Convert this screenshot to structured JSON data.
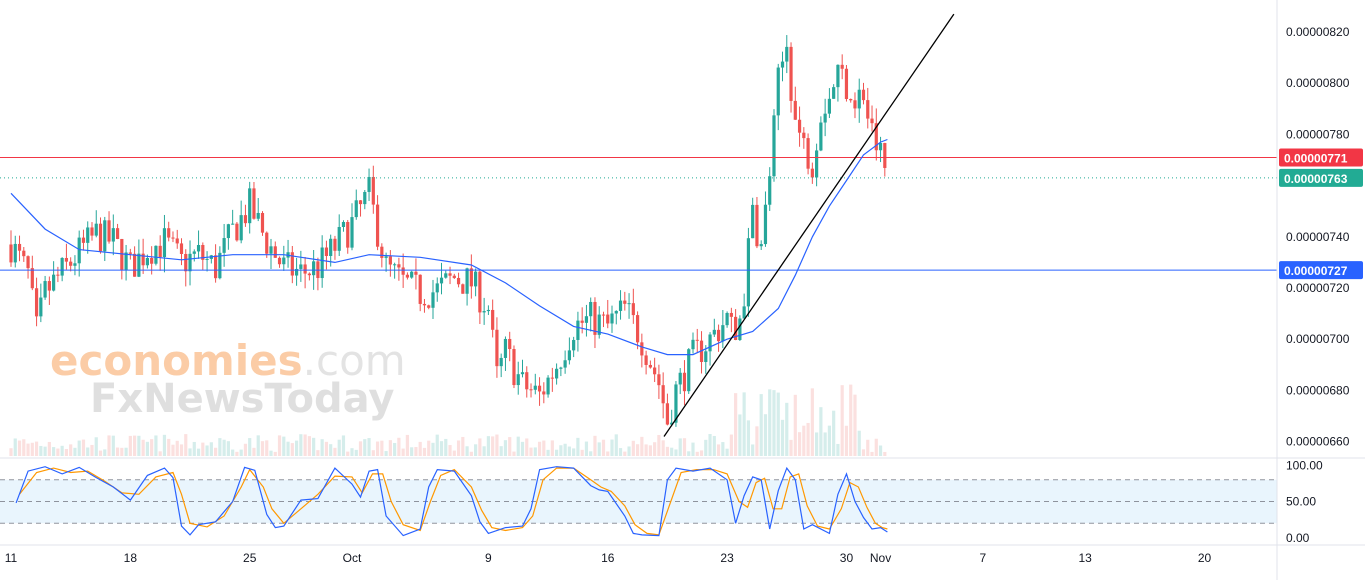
{
  "watermark": {
    "brand_primary": "economies",
    "brand_suffix": ".com",
    "brand_secondary": "FxNewsToday"
  },
  "colors": {
    "up": "#26a69a",
    "down": "#ef5350",
    "ma": "#2962ff",
    "k_line": "#2962ff",
    "d_line": "#ff9800",
    "resistance": "#f23645",
    "support": "#2962ff",
    "price_badge": "#22ab94",
    "trendline": "#000000"
  },
  "chart_data": [
    {
      "type": "candlestick",
      "y_ticks": [
        "0.00000820",
        "0.00000800",
        "0.00000780",
        "0.00000740",
        "0.00000720",
        "0.00000700",
        "0.00000680",
        "0.00000660"
      ],
      "ylim": [
        6.536e-06,
        8.325e-06
      ],
      "x_ticks": [
        {
          "label": "11",
          "day": 0
        },
        {
          "label": "18",
          "day": 7
        },
        {
          "label": "25",
          "day": 14
        },
        {
          "label": "Oct",
          "day": 20
        },
        {
          "label": "9",
          "day": 28
        },
        {
          "label": "16",
          "day": 35
        },
        {
          "label": "23",
          "day": 42
        },
        {
          "label": "30",
          "day": 49
        },
        {
          "label": "Nov",
          "day": 51
        },
        {
          "label": "7",
          "day": 57
        },
        {
          "label": "13",
          "day": 63
        },
        {
          "label": "20",
          "day": 70
        }
      ],
      "xlim": [
        0,
        74
      ],
      "data_end_day": 51.4,
      "horizontal_lines": [
        {
          "name": "resistance",
          "value": 7.71e-06,
          "label": "0.00000771"
        },
        {
          "name": "support",
          "value": 7.27e-06,
          "label": "0.00000727"
        }
      ],
      "current_price": {
        "value": 7.63e-06,
        "label": "0.00000763"
      },
      "trendline": {
        "from": {
          "day": 38.3,
          "value": 6.62e-06
        },
        "to": {
          "day": 55.3,
          "value": 8.27e-06
        }
      },
      "series": [
        {
          "kind": "close_path",
          "points": [
            [
              0,
              7.37e-06
            ],
            [
              1,
              7.25e-06
            ],
            [
              1.5,
              7.03e-06
            ],
            [
              2,
              7.18e-06
            ],
            [
              3,
              7.26e-06
            ],
            [
              4,
              7.34e-06
            ],
            [
              5,
              7.41e-06
            ],
            [
              6,
              7.38e-06
            ],
            [
              7,
              7.28e-06
            ],
            [
              8,
              7.35e-06
            ],
            [
              9,
              7.38e-06
            ],
            [
              10,
              7.3e-06
            ],
            [
              11,
              7.33e-06
            ],
            [
              12,
              7.28e-06
            ],
            [
              13,
              7.42e-06
            ],
            [
              14,
              7.52e-06
            ],
            [
              15,
              7.38e-06
            ],
            [
              16,
              7.28e-06
            ],
            [
              17,
              7.26e-06
            ],
            [
              18,
              7.28e-06
            ],
            [
              19,
              7.36e-06
            ],
            [
              20,
              7.45e-06
            ],
            [
              21,
              7.57e-06
            ],
            [
              22,
              7.28e-06
            ],
            [
              23,
              7.22e-06
            ],
            [
              24,
              7.18e-06
            ],
            [
              25,
              7.19e-06
            ],
            [
              26,
              7.24e-06
            ],
            [
              27,
              7.22e-06
            ],
            [
              28,
              7.12e-06
            ],
            [
              28.5,
              6.85e-06
            ],
            [
              29,
              6.95e-06
            ],
            [
              30,
              6.82e-06
            ],
            [
              31,
              6.78e-06
            ],
            [
              32,
              6.9e-06
            ],
            [
              33,
              7.05e-06
            ],
            [
              34,
              7.08e-06
            ],
            [
              35,
              7.05e-06
            ],
            [
              36,
              7.12e-06
            ],
            [
              37,
              7e-06
            ],
            [
              38,
              6.83e-06
            ],
            [
              38.5,
              6.68e-06
            ],
            [
              39,
              6.8e-06
            ],
            [
              40,
              6.93e-06
            ],
            [
              41,
              7e-06
            ],
            [
              42,
              7.08e-06
            ],
            [
              42.5,
              7e-06
            ],
            [
              43,
              7.18e-06
            ],
            [
              43.5,
              7.5e-06
            ],
            [
              44,
              7.35e-06
            ],
            [
              44.5,
              7.65e-06
            ],
            [
              45,
              8e-06
            ],
            [
              45.5,
              8.15e-06
            ],
            [
              46,
              7.85e-06
            ],
            [
              46.5,
              7.75e-06
            ],
            [
              47,
              7.7e-06
            ],
            [
              47.5,
              7.9e-06
            ],
            [
              48,
              7.95e-06
            ],
            [
              48.5,
              8.05e-06
            ],
            [
              49,
              8e-06
            ],
            [
              49.5,
              7.95e-06
            ],
            [
              50,
              7.95e-06
            ],
            [
              50.5,
              7.8e-06
            ],
            [
              51,
              7.72e-06
            ],
            [
              51.4,
              7.63e-06
            ]
          ]
        },
        {
          "kind": "moving_average",
          "points": [
            [
              0,
              7.57e-06
            ],
            [
              2,
              7.43e-06
            ],
            [
              4,
              7.35e-06
            ],
            [
              7,
              7.33e-06
            ],
            [
              10,
              7.31e-06
            ],
            [
              13,
              7.33e-06
            ],
            [
              16,
              7.33e-06
            ],
            [
              19,
              7.3e-06
            ],
            [
              21,
              7.33e-06
            ],
            [
              24,
              7.32e-06
            ],
            [
              27,
              7.29e-06
            ],
            [
              29,
              7.22e-06
            ],
            [
              31,
              7.13e-06
            ],
            [
              33,
              7.05e-06
            ],
            [
              35,
              7.02e-06
            ],
            [
              37,
              6.97e-06
            ],
            [
              38.5,
              6.94e-06
            ],
            [
              40,
              6.94e-06
            ],
            [
              42,
              7e-06
            ],
            [
              43.5,
              7.03e-06
            ],
            [
              45,
              7.12e-06
            ],
            [
              46,
              7.25e-06
            ],
            [
              47,
              7.4e-06
            ],
            [
              48,
              7.52e-06
            ],
            [
              49,
              7.62e-06
            ],
            [
              50,
              7.72e-06
            ],
            [
              51,
              7.77e-06
            ],
            [
              51.4,
              7.78e-06
            ]
          ]
        }
      ]
    },
    {
      "type": "line",
      "indicator": "stochastic_rsi",
      "y_ticks": [
        "100.00",
        "50.00",
        "0.00"
      ],
      "ylim": [
        -10,
        110
      ],
      "band": {
        "upper": 80,
        "middle": 50,
        "lower": 20
      },
      "series": [
        {
          "name": "K",
          "points": [
            [
              0.3,
              48
            ],
            [
              1,
              92
            ],
            [
              2,
              98
            ],
            [
              3,
              88
            ],
            [
              4,
              97
            ],
            [
              5,
              83
            ],
            [
              6,
              70
            ],
            [
              7,
              52
            ],
            [
              8,
              86
            ],
            [
              9,
              96
            ],
            [
              9.5,
              83
            ],
            [
              10,
              16
            ],
            [
              10.5,
              4
            ],
            [
              11,
              18
            ],
            [
              12,
              22
            ],
            [
              13,
              50
            ],
            [
              13.7,
              97
            ],
            [
              14.3,
              93
            ],
            [
              15,
              32
            ],
            [
              15.5,
              14
            ],
            [
              16,
              16
            ],
            [
              17,
              52
            ],
            [
              18,
              54
            ],
            [
              19,
              96
            ],
            [
              20,
              74
            ],
            [
              20.5,
              56
            ],
            [
              21,
              92
            ],
            [
              21.5,
              94
            ],
            [
              22,
              30
            ],
            [
              23,
              3
            ],
            [
              24,
              12
            ],
            [
              24.5,
              70
            ],
            [
              25,
              94
            ],
            [
              26,
              92
            ],
            [
              27,
              58
            ],
            [
              27.5,
              22
            ],
            [
              28,
              6
            ],
            [
              29,
              14
            ],
            [
              30,
              16
            ],
            [
              30.5,
              40
            ],
            [
              31,
              94
            ],
            [
              32,
              98
            ],
            [
              33,
              96
            ],
            [
              34,
              72
            ],
            [
              34.5,
              66
            ],
            [
              35,
              64
            ],
            [
              36,
              30
            ],
            [
              36.5,
              6
            ],
            [
              37,
              4
            ],
            [
              38,
              3
            ],
            [
              38.5,
              80
            ],
            [
              39,
              96
            ],
            [
              40,
              92
            ],
            [
              41,
              96
            ],
            [
              42,
              80
            ],
            [
              42.5,
              20
            ],
            [
              43,
              58
            ],
            [
              43.5,
              84
            ],
            [
              44,
              80
            ],
            [
              44.5,
              12
            ],
            [
              45,
              65
            ],
            [
              45.5,
              96
            ],
            [
              46,
              80
            ],
            [
              46.5,
              12
            ],
            [
              47,
              18
            ],
            [
              48,
              6
            ],
            [
              48.5,
              60
            ],
            [
              49,
              88
            ],
            [
              49.5,
              50
            ],
            [
              50,
              28
            ],
            [
              50.5,
              12
            ],
            [
              51,
              14
            ],
            [
              51.4,
              8
            ]
          ]
        },
        {
          "name": "D",
          "points": [
            [
              0.5,
              60
            ],
            [
              1.5,
              90
            ],
            [
              2.5,
              96
            ],
            [
              3.5,
              90
            ],
            [
              4.5,
              92
            ],
            [
              5.5,
              78
            ],
            [
              6.5,
              62
            ],
            [
              7.5,
              60
            ],
            [
              8.5,
              84
            ],
            [
              9.5,
              90
            ],
            [
              10,
              60
            ],
            [
              10.5,
              20
            ],
            [
              11.5,
              15
            ],
            [
              12.5,
              30
            ],
            [
              13.5,
              70
            ],
            [
              14,
              94
            ],
            [
              14.8,
              70
            ],
            [
              15.3,
              40
            ],
            [
              16,
              20
            ],
            [
              17,
              40
            ],
            [
              18,
              60
            ],
            [
              19,
              85
            ],
            [
              20,
              84
            ],
            [
              20.6,
              62
            ],
            [
              21.2,
              88
            ],
            [
              21.8,
              88
            ],
            [
              22.3,
              50
            ],
            [
              23,
              18
            ],
            [
              24,
              10
            ],
            [
              24.6,
              50
            ],
            [
              25.2,
              86
            ],
            [
              26,
              94
            ],
            [
              27,
              70
            ],
            [
              27.6,
              38
            ],
            [
              28.2,
              14
            ],
            [
              29,
              10
            ],
            [
              30,
              14
            ],
            [
              30.6,
              30
            ],
            [
              31.2,
              80
            ],
            [
              32,
              96
            ],
            [
              33,
              96
            ],
            [
              34,
              80
            ],
            [
              34.6,
              70
            ],
            [
              35.2,
              64
            ],
            [
              36,
              44
            ],
            [
              36.6,
              18
            ],
            [
              37.3,
              6
            ],
            [
              38,
              4
            ],
            [
              38.7,
              50
            ],
            [
              39.3,
              90
            ],
            [
              40.2,
              94
            ],
            [
              41.2,
              94
            ],
            [
              42,
              88
            ],
            [
              42.7,
              50
            ],
            [
              43.2,
              42
            ],
            [
              43.7,
              76
            ],
            [
              44.2,
              82
            ],
            [
              44.7,
              40
            ],
            [
              45.2,
              40
            ],
            [
              45.7,
              84
            ],
            [
              46.2,
              88
            ],
            [
              46.7,
              44
            ],
            [
              47.3,
              16
            ],
            [
              48,
              12
            ],
            [
              48.7,
              40
            ],
            [
              49.2,
              76
            ],
            [
              49.7,
              70
            ],
            [
              50.2,
              42
            ],
            [
              50.7,
              20
            ],
            [
              51.1,
              14
            ],
            [
              51.4,
              12
            ]
          ]
        }
      ]
    }
  ]
}
